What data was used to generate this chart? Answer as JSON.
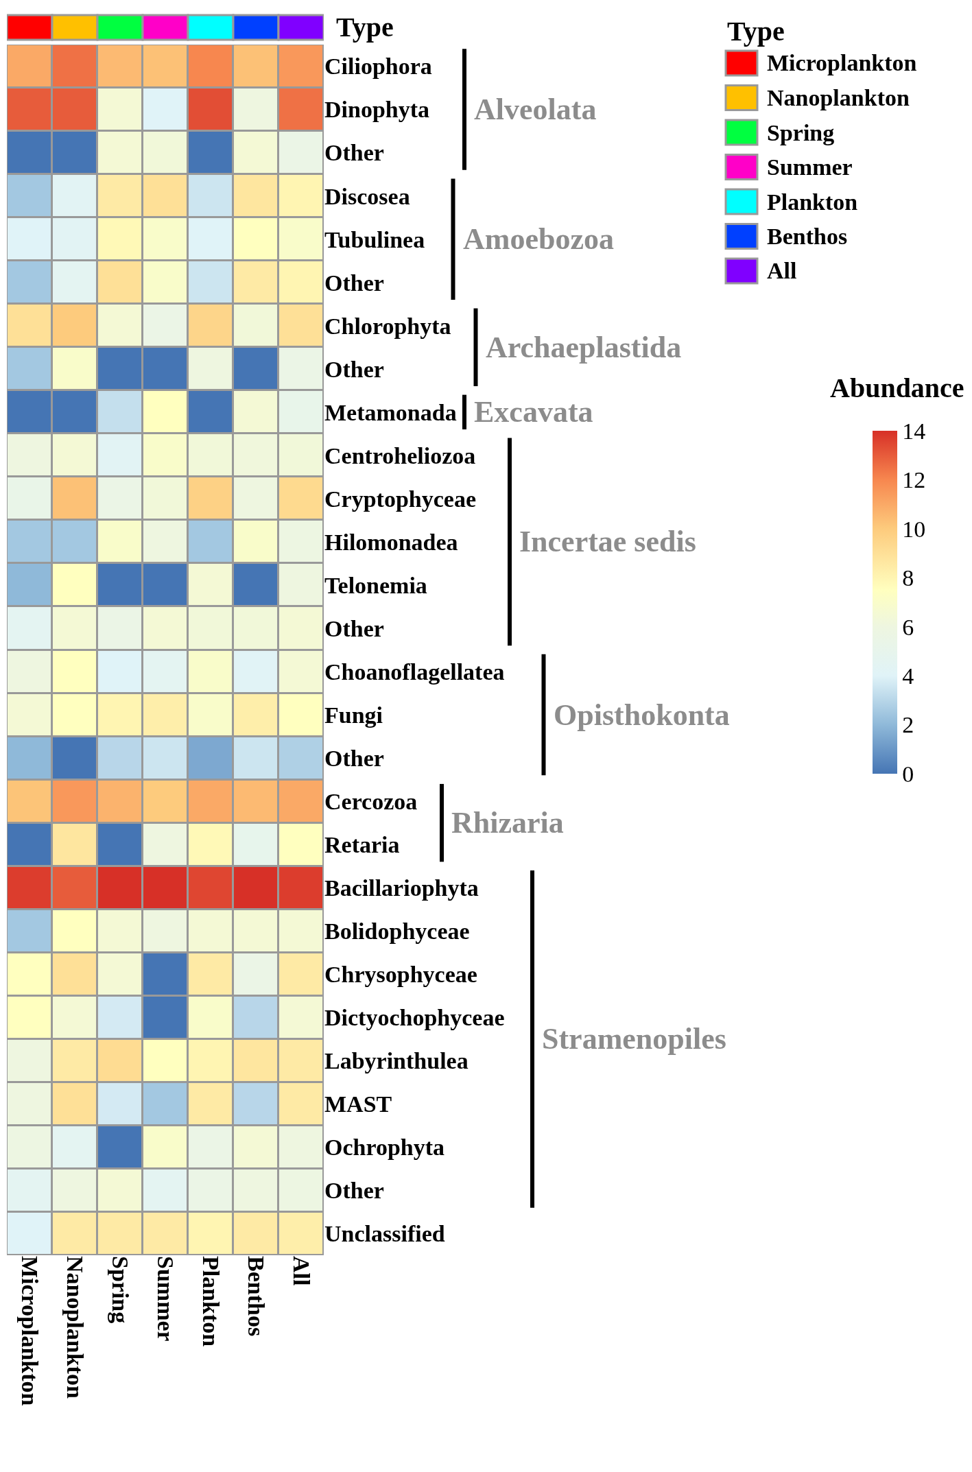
{
  "chart_data": {
    "type": "heatmap",
    "categories": [
      "Microplankton",
      "Nanoplankton",
      "Spring",
      "Summer",
      "Plankton",
      "Benthos",
      "All"
    ],
    "colors": [
      "#ff0000",
      "#ffc000",
      "#00ff40",
      "#ff00c8",
      "#00ffff",
      "#0040ff",
      "#8000ff"
    ],
    "legend_title": "Type",
    "clabel": "Abundance",
    "clim": [
      0,
      14
    ],
    "cticks": [
      0,
      2,
      4,
      6,
      8,
      10,
      12,
      14
    ],
    "y_categories": [
      "Ciliophora",
      "Dinophyta",
      "Other",
      "Discosea",
      "Tubulinea",
      "Other",
      "Chlorophyta",
      "Other",
      "Metamonada",
      "Centroheliozoa",
      "Cryptophyceae",
      "Hilomonadea",
      "Telonemia",
      "Other",
      "Choanoflagellatea",
      "Fungi",
      "Other",
      "Cercozoa",
      "Retaria",
      "Bacillariophyta",
      "Bolidophyceae",
      "Chrysophyceae",
      "Dictyochophyceae",
      "Labyrinthulea",
      "MAST",
      "Ochrophyta",
      "Other",
      "Unclassified"
    ],
    "cells": [
      [
        11,
        12.5,
        10.5,
        10.3,
        12,
        10.3,
        11.5
      ],
      [
        13,
        13,
        6.5,
        4,
        13.3,
        6,
        12.5
      ],
      [
        0,
        0,
        6.5,
        6.3,
        0,
        6.5,
        5.5
      ],
      [
        2.5,
        4.3,
        8.5,
        9,
        3.5,
        8.7,
        8
      ],
      [
        4,
        4.3,
        7.8,
        7,
        4,
        7.5,
        7
      ],
      [
        2.5,
        4.5,
        9,
        7,
        3.5,
        8.5,
        8
      ],
      [
        9,
        10,
        6.5,
        5.5,
        9.5,
        6.3,
        9
      ],
      [
        2.5,
        7,
        0,
        0,
        6,
        0,
        5.5
      ],
      [
        0,
        0,
        3.3,
        7.5,
        0,
        6.5,
        5.2
      ],
      [
        6,
        6.5,
        4.3,
        7,
        6.3,
        6.2,
        6.3
      ],
      [
        5.3,
        10.3,
        5.5,
        6.3,
        9.7,
        6,
        9.3
      ],
      [
        2.5,
        2.5,
        7,
        6,
        2.5,
        7,
        5.8
      ],
      [
        2,
        7.5,
        0,
        0,
        6.5,
        0,
        6
      ],
      [
        4.5,
        6.5,
        5.5,
        6.5,
        6.3,
        6.3,
        6.5
      ],
      [
        6,
        7.5,
        4,
        4.5,
        7,
        4.2,
        6.5
      ],
      [
        6.5,
        7.5,
        8,
        8.3,
        7,
        8.3,
        7.5
      ],
      [
        2,
        0,
        3,
        3.5,
        1.5,
        3.5,
        2.8
      ],
      [
        10.2,
        11.5,
        10.7,
        10,
        11,
        10.5,
        11
      ],
      [
        0,
        8.7,
        0,
        6,
        7.8,
        5,
        7.5
      ],
      [
        13.7,
        13,
        14,
        14,
        13.5,
        14,
        13.7
      ],
      [
        2.5,
        7.5,
        6.5,
        6,
        6.5,
        6.5,
        6.5
      ],
      [
        7.5,
        9,
        6.5,
        0,
        8.5,
        5.5,
        8.5
      ],
      [
        7.5,
        6.5,
        3.7,
        0,
        7,
        3,
        6.5
      ],
      [
        6,
        8.5,
        9.2,
        7.5,
        8,
        8.7,
        8.5
      ],
      [
        6,
        9,
        3.7,
        2.5,
        8.5,
        3,
        8.5
      ],
      [
        5.8,
        4.5,
        0,
        7,
        5.5,
        6.5,
        6
      ],
      [
        4.5,
        6,
        6.5,
        4.5,
        5.5,
        6,
        5.8
      ],
      [
        4,
        8.5,
        8.5,
        8.5,
        8,
        8.5,
        8.3
      ]
    ],
    "annotations": [
      "Alveolata",
      "Amoebozoa",
      "Archaeplastida",
      "Excavata",
      "Incertae sedis",
      "Opisthokonta",
      "Rhizaria",
      "Stramenopiles"
    ]
  }
}
